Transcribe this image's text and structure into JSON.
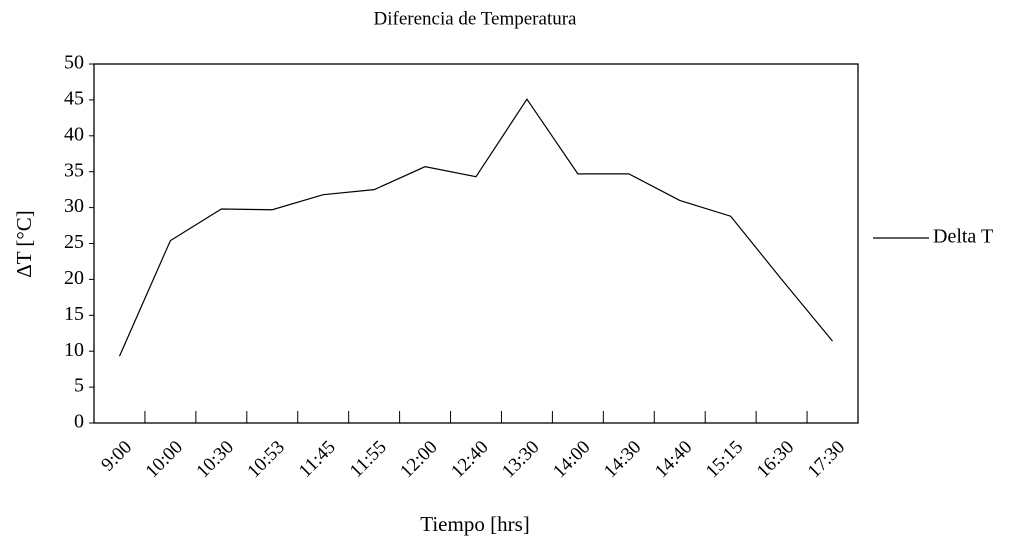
{
  "chart_data": {
    "type": "line",
    "title": "Diferencia de Temperatura",
    "x_label": "Tiempo [hrs]",
    "y_label": "ΔT [°C]",
    "categories": [
      "9:00",
      "10:00",
      "10:30",
      "10:53",
      "11:45",
      "11:55",
      "12:00",
      "12:40",
      "13:30",
      "14:00",
      "14:30",
      "14:40",
      "15:15",
      "16:30",
      "17:30"
    ],
    "series": [
      {
        "name": "Delta T",
        "color": "#000000",
        "values": [
          9.3,
          25.4,
          29.8,
          29.7,
          31.8,
          32.5,
          35.7,
          34.3,
          45.1,
          34.7,
          34.7,
          31.0,
          28.8,
          20.0,
          11.4
        ]
      }
    ],
    "ylim": [
      0,
      50
    ],
    "yticks": [
      0,
      5,
      10,
      15,
      20,
      25,
      30,
      35,
      40,
      45,
      50
    ],
    "grid": false,
    "legend": "right"
  }
}
